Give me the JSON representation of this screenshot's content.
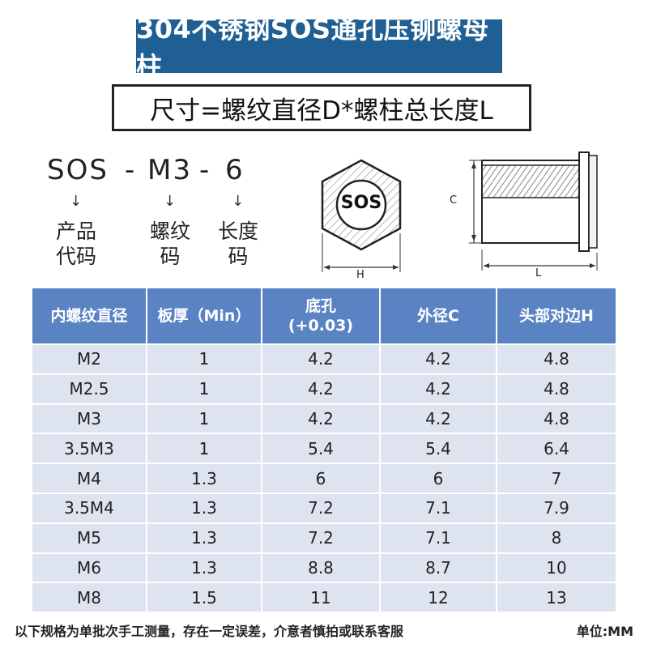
{
  "title": "304不锈钢SOS通孔压铆螺母柱",
  "subtitle": "尺寸=螺纹直径D*螺柱总长度L",
  "code_example": {
    "parts": [
      "SOS",
      "-",
      "M3",
      "-",
      "6"
    ],
    "arrow": "↓",
    "labels": [
      "产品\n代码",
      "螺纹\n码",
      "长度\n码"
    ]
  },
  "diagram": {
    "hex_text": "SOS",
    "hex_dim": "H",
    "side_dim_c": "C",
    "side_dim_l": "L"
  },
  "table": {
    "headers": [
      "内螺纹直径",
      "板厚（Min）",
      "底孔\n(+0.03)",
      "外径C",
      "头部对边H"
    ],
    "rows": [
      [
        "M2",
        "1",
        "4.2",
        "4.2",
        "4.8"
      ],
      [
        "M2.5",
        "1",
        "4.2",
        "4.2",
        "4.8"
      ],
      [
        "M3",
        "1",
        "4.2",
        "4.2",
        "4.8"
      ],
      [
        "3.5M3",
        "1",
        "5.4",
        "5.4",
        "6.4"
      ],
      [
        "M4",
        "1.3",
        "6",
        "6",
        "7"
      ],
      [
        "3.5M4",
        "1.3",
        "7.2",
        "7.1",
        "7.9"
      ],
      [
        "M5",
        "1.3",
        "7.2",
        "7.1",
        "8"
      ],
      [
        "M6",
        "1.3",
        "8.8",
        "8.7",
        "10"
      ],
      [
        "M8",
        "1.5",
        "11",
        "12",
        "13"
      ]
    ]
  },
  "footer": {
    "note": "以下规格为单批次手工测量，存在一定误差，介意者慎拍或联系客服",
    "unit": "单位:MM"
  },
  "colors": {
    "banner": "#1f5f93",
    "header": "#5a83c4",
    "cell": "#dde4ef"
  }
}
